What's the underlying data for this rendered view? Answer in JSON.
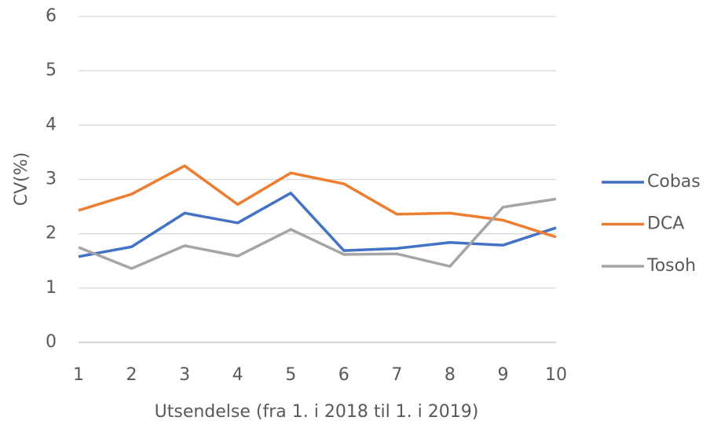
{
  "chart_data": {
    "type": "line",
    "x": [
      1,
      2,
      3,
      4,
      5,
      6,
      7,
      8,
      9,
      10
    ],
    "series": [
      {
        "name": "Cobas",
        "color": "#4472c4",
        "values": [
          1.58,
          1.76,
          2.38,
          2.2,
          2.75,
          1.69,
          1.73,
          1.84,
          1.79,
          2.11
        ]
      },
      {
        "name": "DCA",
        "color": "#ed7d31",
        "values": [
          2.43,
          2.73,
          3.25,
          2.54,
          3.12,
          2.92,
          2.36,
          2.38,
          2.25,
          1.94
        ]
      },
      {
        "name": "Tosoh",
        "color": "#a5a5a5",
        "values": [
          1.75,
          1.36,
          1.78,
          1.59,
          2.08,
          1.62,
          1.63,
          1.4,
          2.49,
          2.64
        ]
      }
    ],
    "xlim": [
      1,
      10
    ],
    "xticks": [
      1,
      2,
      3,
      4,
      5,
      6,
      7,
      8,
      9,
      10
    ],
    "ylim": [
      0,
      6
    ],
    "yticks": [
      0,
      1,
      2,
      3,
      4,
      5,
      6
    ],
    "xlabel": "Utsendelse  (fra 1. i 2018 til 1. i 2019)",
    "ylabel": "CV(%)",
    "grid": true,
    "legend": "right"
  }
}
